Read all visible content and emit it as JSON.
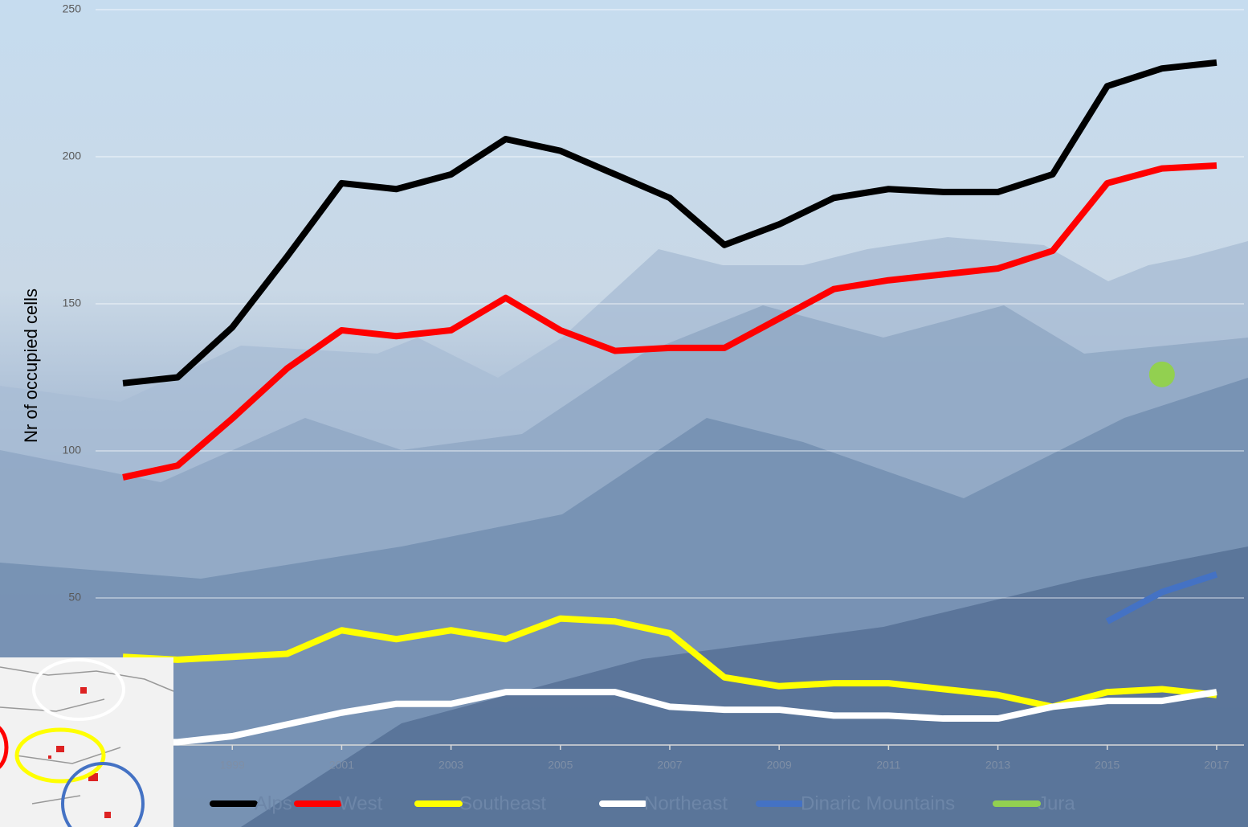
{
  "chart_data": {
    "type": "line",
    "y_label": "Nr of occupied cells",
    "x": [
      1997,
      1998,
      1999,
      2000,
      2001,
      2002,
      2003,
      2004,
      2005,
      2006,
      2007,
      2008,
      2009,
      2010,
      2011,
      2012,
      2013,
      2014,
      2015,
      2016,
      2017
    ],
    "xlim": [
      1996.5,
      2017.5
    ],
    "xticks": [
      1999,
      2001,
      2003,
      2005,
      2007,
      2009,
      2011,
      2013,
      2015,
      2017
    ],
    "ylim": [
      0,
      250
    ],
    "yticks": [
      50,
      100,
      150,
      200,
      250
    ],
    "grid": true,
    "legend": "bottom",
    "series": [
      {
        "name": "Alps",
        "color": "#000000",
        "values": [
          123,
          125,
          142,
          166,
          191,
          189,
          194,
          206,
          202,
          194,
          186,
          170,
          177,
          186,
          189,
          188,
          188,
          194,
          224,
          230,
          232
        ]
      },
      {
        "name": "West",
        "color": "#ff0000",
        "values": [
          91,
          95,
          111,
          128,
          141,
          139,
          141,
          152,
          141,
          134,
          135,
          135,
          145,
          155,
          158,
          160,
          162,
          168,
          191,
          196,
          197
        ]
      },
      {
        "name": "Southeast",
        "color": "#ffff00",
        "values": [
          30,
          29,
          30,
          31,
          39,
          36,
          39,
          36,
          43,
          42,
          38,
          23,
          20,
          21,
          21,
          19,
          17,
          13,
          18,
          19,
          17
        ]
      },
      {
        "name": "Northeast",
        "color": "#ffffff",
        "values": [
          1,
          1,
          3,
          7,
          11,
          14,
          14,
          18,
          18,
          18,
          13,
          12,
          12,
          10,
          10,
          9,
          9,
          13,
          15,
          15,
          18
        ]
      },
      {
        "name": "Dinaric Mountains",
        "color": "#4472c4",
        "values": [
          null,
          null,
          null,
          null,
          null,
          null,
          null,
          null,
          null,
          null,
          null,
          null,
          null,
          null,
          null,
          null,
          null,
          null,
          42,
          52,
          58
        ]
      },
      {
        "name": "Jura",
        "color": "#92d050",
        "values": [
          null,
          null,
          null,
          null,
          null,
          null,
          null,
          null,
          null,
          null,
          null,
          null,
          null,
          null,
          null,
          null,
          null,
          null,
          null,
          126,
          null
        ]
      }
    ]
  }
}
